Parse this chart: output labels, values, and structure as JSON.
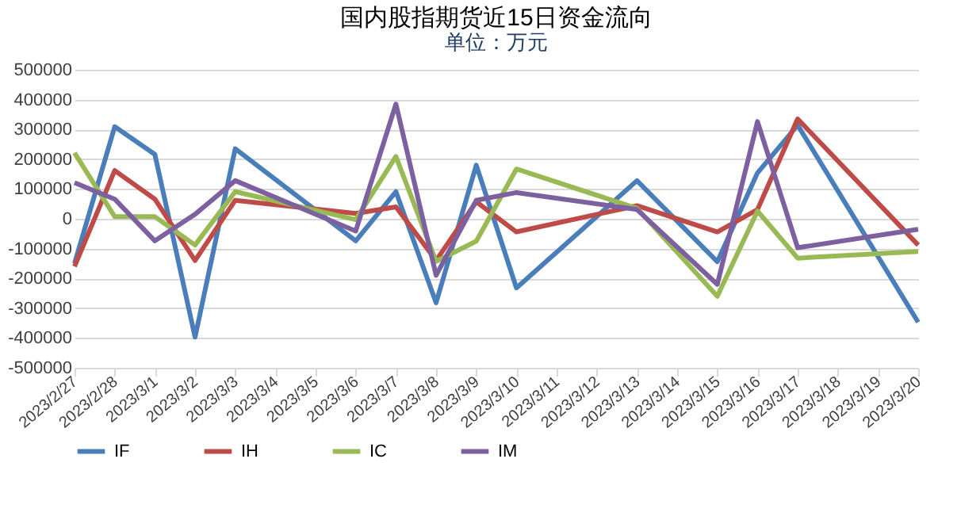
{
  "chart_data": {
    "type": "line",
    "title": "国内股指期货近15日资金流向",
    "subtitle": "单位：万元",
    "categories": [
      "2023/2/27",
      "2023/2/28",
      "2023/3/1",
      "2023/3/2",
      "2023/3/3",
      "2023/3/4",
      "2023/3/5",
      "2023/3/6",
      "2023/3/7",
      "2023/3/8",
      "2023/3/9",
      "2023/3/10",
      "2023/3/11",
      "2023/3/12",
      "2023/3/13",
      "2023/3/14",
      "2023/3/15",
      "2023/3/16",
      "2023/3/17",
      "2023/3/18",
      "2023/3/19",
      "2023/3/20"
    ],
    "series": [
      {
        "name": "IF",
        "color": "#4a7ebb",
        "values": [
          -150000,
          309000,
          216000,
          -397000,
          235000,
          null,
          null,
          -74000,
          91000,
          -282000,
          180000,
          -232000,
          null,
          null,
          128000,
          null,
          -144000,
          154000,
          314000,
          null,
          null,
          -347000
        ]
      },
      {
        "name": "IH",
        "color": "#be4b48",
        "values": [
          -160000,
          162000,
          66000,
          -140000,
          62000,
          null,
          null,
          18000,
          40000,
          -140000,
          57000,
          -44000,
          null,
          null,
          44000,
          null,
          -44000,
          31000,
          335000,
          null,
          null,
          -88000
        ]
      },
      {
        "name": "IC",
        "color": "#98b954",
        "values": [
          221000,
          7000,
          7000,
          -88000,
          91000,
          null,
          null,
          -3000,
          209000,
          -143000,
          -75000,
          167000,
          null,
          null,
          35000,
          null,
          -260000,
          26000,
          -132000,
          null,
          null,
          -110000
        ]
      },
      {
        "name": "IM",
        "color": "#7d60a0",
        "values": [
          121000,
          66000,
          -74000,
          15000,
          128000,
          null,
          null,
          -41000,
          385000,
          -190000,
          62000,
          88000,
          null,
          null,
          31000,
          null,
          -220000,
          326000,
          -97000,
          null,
          null,
          -35000
        ]
      }
    ],
    "ylim": [
      -500000,
      500000
    ],
    "yticks": [
      -500000,
      -400000,
      -300000,
      -200000,
      -100000,
      0,
      100000,
      200000,
      300000,
      400000,
      500000
    ],
    "grid": "y",
    "legend": "bottom",
    "marker": "none",
    "line_style": "solid"
  }
}
